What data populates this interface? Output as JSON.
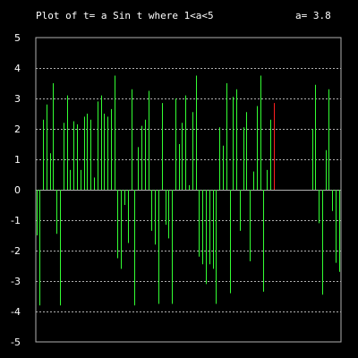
{
  "chart_data": {
    "type": "bar",
    "title": "Plot of t= a Sin t where 1<a<5",
    "param_label": "a= 3.8",
    "ylim": [
      -5,
      5
    ],
    "yticks": [
      "-5",
      "-4",
      "-3",
      "-2",
      "-1",
      "0",
      "1",
      "2",
      "3",
      "4",
      "5"
    ],
    "grid": true,
    "colors": {
      "normal": "#33ff33",
      "highlight": "#ff2020",
      "grid": "#b0b0b0",
      "frame": "#b0b0b0"
    },
    "series": [
      {
        "values": [
          -1.5,
          -3.8,
          2.3,
          2.8,
          1.2,
          3.5,
          -1.45,
          -3.8,
          2.2,
          3.1,
          0.65,
          2.25,
          2.15,
          0.65,
          2.4,
          2.5,
          2.3,
          0.4,
          2.9,
          3.1,
          2.5,
          2.4,
          2.65,
          3.75,
          -2.25,
          -2.6,
          -0.5,
          -1.75,
          3.3,
          -3.8,
          1.4,
          2.1,
          2.3,
          3.25,
          -1.35,
          -1.8,
          -3.75,
          2.85,
          -1.15,
          -1.6,
          -3.75,
          3.0,
          1.5,
          2.2,
          3.1,
          0.15,
          2.55,
          3.75,
          -2.2,
          -2.45,
          -3.1,
          -2.45,
          -2.6,
          -3.75,
          2.05,
          1.45,
          3.5,
          -3.4,
          3.05,
          3.3,
          -1.35,
          2.05,
          2.55,
          -2.35,
          0.6,
          2.75,
          3.75,
          -3.35,
          0.65,
          2.3,
          2.85
        ]
      },
      {
        "values": [
          2.0,
          3.45,
          -1.1,
          -3.45,
          1.3,
          3.3,
          -0.7,
          -2.4,
          -2.7
        ]
      }
    ]
  }
}
